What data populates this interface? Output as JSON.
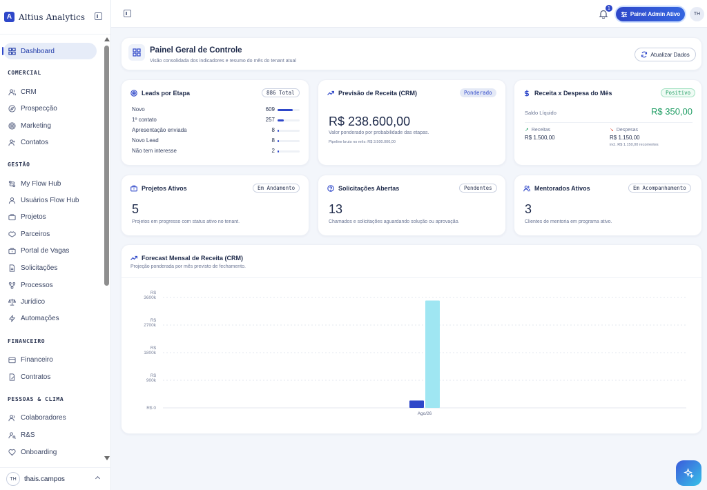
{
  "brand": {
    "logo_letter": "A",
    "name": "Altius Analytics"
  },
  "sidebar": {
    "dashboard": "Dashboard",
    "sections": [
      {
        "title": "COMERCIAL",
        "items": [
          "CRM",
          "Prospecção",
          "Marketing",
          "Contatos"
        ]
      },
      {
        "title": "GESTÃO",
        "items": [
          "My Flow Hub",
          "Usuários Flow Hub",
          "Projetos",
          "Parceiros",
          "Portal de Vagas",
          "Solicitações",
          "Processos",
          "Jurídico",
          "Automações"
        ]
      },
      {
        "title": "FINANCEIRO",
        "items": [
          "Financeiro",
          "Contratos"
        ]
      },
      {
        "title": "PESSOAS & CLIMA",
        "items": [
          "Colaboradores",
          "R&S",
          "Onboarding"
        ]
      }
    ],
    "user": {
      "initials": "TH",
      "name": "thais.campos"
    }
  },
  "topbar": {
    "notification_count": "1",
    "admin_button": "Painel Admin Ativo",
    "avatar_initials": "TH"
  },
  "header": {
    "title": "Painel Geral de Controle",
    "subtitle": "Visão consolidada dos indicadores e resumo do mês do tenant atual",
    "refresh_label": "Atualizar Dados"
  },
  "leads": {
    "title": "Leads por Etapa",
    "badge": "886 Total",
    "rows": [
      {
        "label": "Novo",
        "value": "609",
        "fraction": 0.687
      },
      {
        "label": "1º contato",
        "value": "257",
        "fraction": 0.29
      },
      {
        "label": "Apresentação enviada",
        "value": "8",
        "fraction": 0.009
      },
      {
        "label": "Novo Lead",
        "value": "8",
        "fraction": 0.009
      },
      {
        "label": "Não tem interesse",
        "value": "2",
        "fraction": 0.002
      }
    ]
  },
  "revenue_forecast": {
    "title": "Previsão de Receita (CRM)",
    "badge": "Ponderado",
    "value": "R$ 238.600,00",
    "description": "Valor ponderado por probabilidade das etapas.",
    "pipeline": "Pipeline bruto no mês: R$ 3.500.000,00"
  },
  "income_expense": {
    "title": "Receita x Despesa do Mês",
    "badge": "Positivo",
    "balance_label": "Saldo Líquido",
    "balance_value": "R$ 350,00",
    "income_label": "Receitas",
    "income_value": "R$ 1.500,00",
    "expense_label": "Despesas",
    "expense_value": "R$ 1.150,00",
    "expense_note": "incl. R$ 1.150,00 recorrentes"
  },
  "projects": {
    "title": "Projetos Ativos",
    "badge": "Em Andamento",
    "value": "5",
    "description": "Projetos em progresso com status ativo no tenant."
  },
  "requests": {
    "title": "Solicitações Abertas",
    "badge": "Pendentes",
    "value": "13",
    "description": "Chamados e solicitações aguardando solução ou aprovação."
  },
  "mentees": {
    "title": "Mentorados Ativos",
    "badge": "Em Acompanhamento",
    "value": "3",
    "description": "Clientes de mentoria em programa ativo."
  },
  "forecast_chart": {
    "title": "Forecast Mensal de Receita (CRM)",
    "subtitle": "Projeção ponderada por mês previsto de fechamento."
  },
  "chart_data": {
    "type": "bar",
    "title": "Forecast Mensal de Receita (CRM)",
    "categories": [
      "Ago/26"
    ],
    "series": [
      {
        "values": [
          238600
        ],
        "color": "#2e47c9"
      },
      {
        "values": [
          3500000
        ],
        "color": "#9fe6f2"
      }
    ],
    "y_ticks": [
      {
        "value": 0,
        "label": [
          "R$ 0"
        ]
      },
      {
        "value": 900000,
        "label": [
          "R$",
          "900k"
        ]
      },
      {
        "value": 1800000,
        "label": [
          "R$",
          "1800k"
        ]
      },
      {
        "value": 2700000,
        "label": [
          "R$",
          "2700k"
        ]
      },
      {
        "value": 3600000,
        "label": [
          "R$",
          "3600k"
        ]
      }
    ],
    "ylim": [
      0,
      3600000
    ],
    "grid": true
  }
}
